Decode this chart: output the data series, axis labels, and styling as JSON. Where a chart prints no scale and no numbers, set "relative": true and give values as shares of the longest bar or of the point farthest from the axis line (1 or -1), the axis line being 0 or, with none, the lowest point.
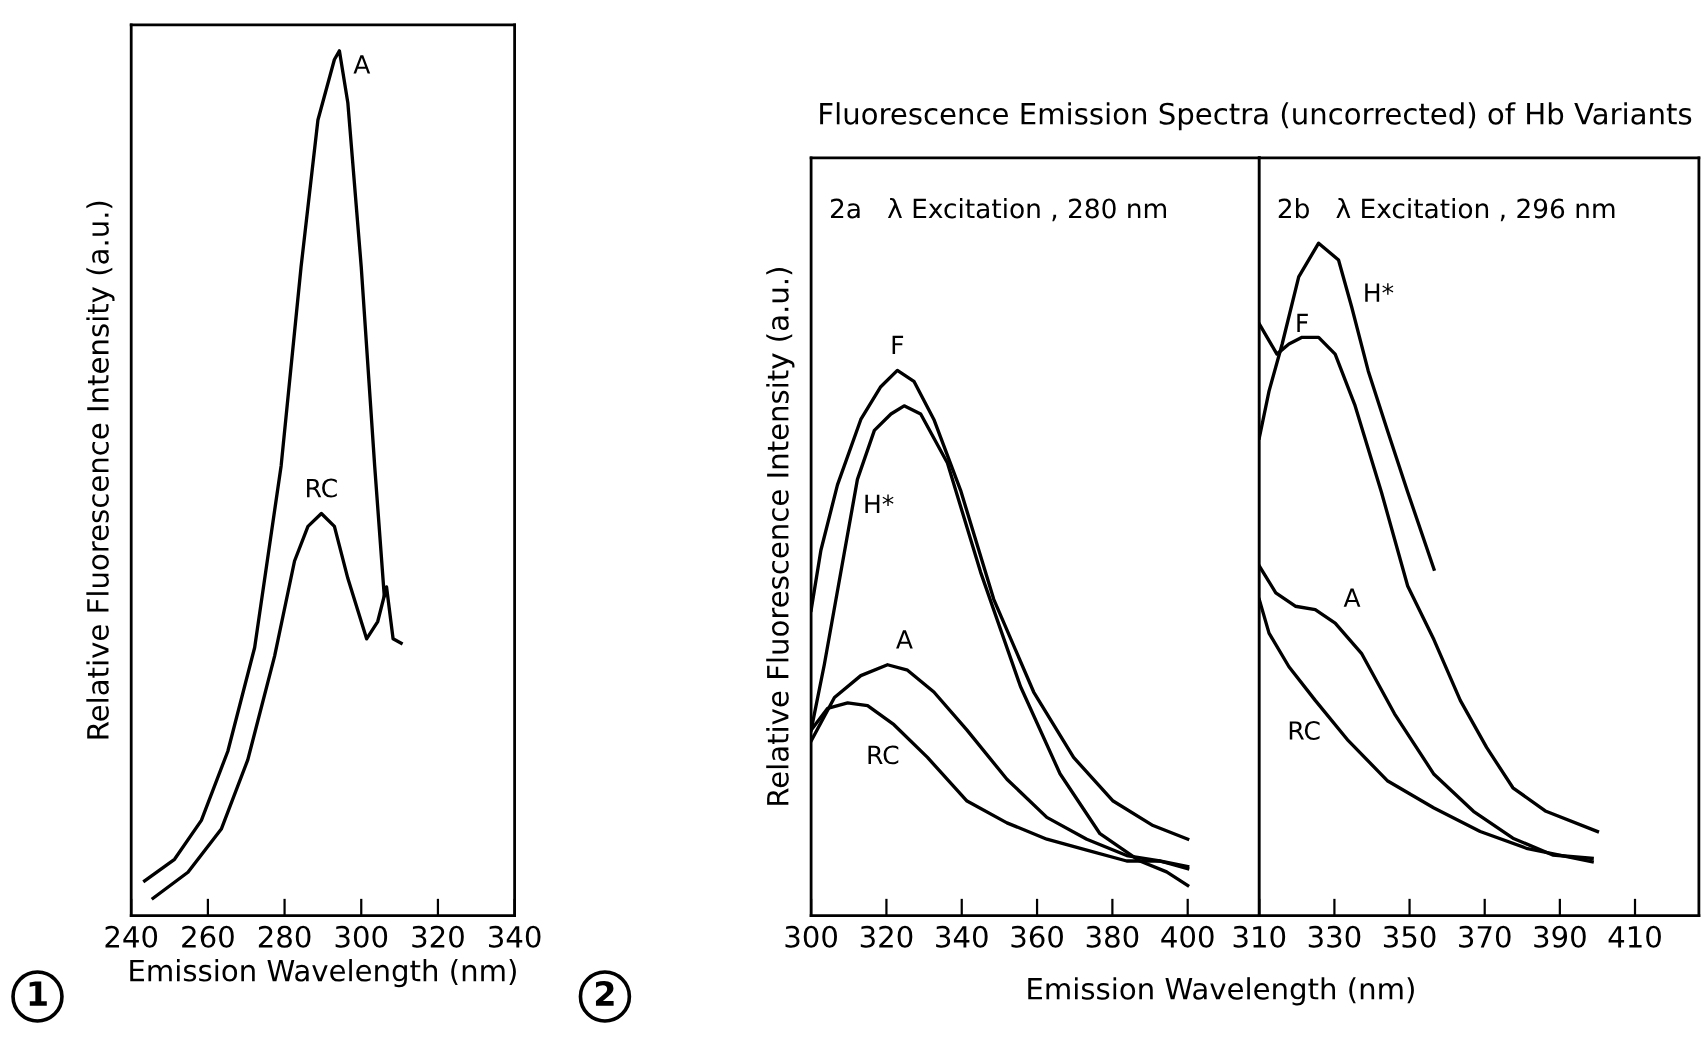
{
  "chart_data": [
    {
      "type": "line",
      "relative": true,
      "xlabel": "Emission Wavelength (nm)",
      "ylabel": "Relative Fluorescence Intensity (a.u.)",
      "xlim": [
        240,
        340
      ],
      "xticks": [
        240,
        260,
        280,
        300,
        320,
        340
      ],
      "grid": false,
      "series": [
        {
          "name": "A",
          "color": "#000000",
          "x": [
            243.5,
            251.3,
            258.3,
            265.2,
            272.2,
            279.1,
            284.3,
            288.7,
            293,
            294.3,
            296.5,
            300,
            303.5,
            306
          ],
          "values": [
            0.04,
            0.065,
            0.11,
            0.19,
            0.31,
            0.52,
            0.75,
            0.92,
            0.99,
            1.0,
            0.94,
            0.75,
            0.52,
            0.37
          ]
        },
        {
          "name": "RC",
          "color": "#000000",
          "x": [
            245.7,
            254.8,
            263.5,
            270.4,
            277.4,
            282.6,
            286.1,
            289.6,
            293,
            296.5,
            301.4,
            304.3,
            306.6,
            308.3,
            310.4
          ],
          "values": [
            0.02,
            0.05,
            0.1,
            0.18,
            0.3,
            0.41,
            0.45,
            0.465,
            0.45,
            0.39,
            0.32,
            0.34,
            0.38,
            0.32,
            0.315
          ]
        }
      ],
      "annotations": [
        "1"
      ]
    },
    {
      "type": "line",
      "relative": true,
      "title": "Fluorescence Emission Spectra (uncorrected) of Hb Variants",
      "xlabel": "Emission Wavelength (nm)",
      "ylabel": "Relative Fluorescence Intensity (a.u.)",
      "xlim": [
        300,
        419
      ],
      "xticks": [
        300,
        320,
        340,
        360,
        380,
        400
      ],
      "grid": false,
      "series": [
        {
          "name": "F",
          "color": "#000000",
          "x": [
            300,
            302.6,
            307,
            313.2,
            318.5,
            322.9,
            327.3,
            332.6,
            339.7,
            348.5,
            359.1,
            369.7,
            380.2,
            390.8,
            400
          ],
          "values": [
            0.56,
            0.67,
            0.79,
            0.91,
            0.97,
            1.0,
            0.98,
            0.91,
            0.78,
            0.58,
            0.41,
            0.29,
            0.21,
            0.165,
            0.14
          ]
        },
        {
          "name": "H*",
          "color": "#000000",
          "x": [
            300,
            303.5,
            307.9,
            312.3,
            316.8,
            321.2,
            324.7,
            329.1,
            336.2,
            345,
            355.6,
            366.1,
            376.7,
            387.3,
            394.4,
            400
          ],
          "values": [
            0.34,
            0.46,
            0.63,
            0.8,
            0.89,
            0.92,
            0.935,
            0.92,
            0.83,
            0.63,
            0.42,
            0.26,
            0.15,
            0.1,
            0.08,
            0.055
          ]
        },
        {
          "name": "A",
          "color": "#000000",
          "x": [
            300,
            306.2,
            313.2,
            320.3,
            325.6,
            332.6,
            341.4,
            352,
            362.6,
            373.2,
            383.8,
            392.6,
            400
          ],
          "values": [
            0.32,
            0.4,
            0.44,
            0.46,
            0.45,
            0.41,
            0.34,
            0.25,
            0.18,
            0.14,
            0.11,
            0.1,
            0.086
          ]
        },
        {
          "name": "RC",
          "color": "#000000",
          "x": [
            300,
            304.4,
            309.7,
            315,
            322,
            330.9,
            341.4,
            352,
            362.6,
            373.2,
            383.8,
            392.6,
            400
          ],
          "values": [
            0.34,
            0.38,
            0.39,
            0.385,
            0.35,
            0.29,
            0.21,
            0.17,
            0.14,
            0.12,
            0.1,
            0.1,
            0.09
          ]
        }
      ],
      "annotations": [
        "2a   λ Excitation , 280 nm",
        "2"
      ]
    },
    {
      "type": "line",
      "relative": true,
      "xlim": [
        310,
        427
      ],
      "xticks": [
        310,
        330,
        350,
        370,
        390,
        410
      ],
      "grid": false,
      "series": [
        {
          "name": "H*",
          "color": "#000000",
          "x": [
            310,
            312.6,
            316.1,
            320.5,
            325.8,
            331.1,
            334.6,
            339,
            344.2,
            349.5,
            356.5
          ],
          "values": [
            0.71,
            0.78,
            0.85,
            0.95,
            1.0,
            0.975,
            0.905,
            0.81,
            0.72,
            0.63,
            0.515
          ]
        },
        {
          "name": "F",
          "color": "#000000",
          "x": [
            310,
            312.6,
            314.7,
            317.9,
            321.4,
            325.8,
            330.2,
            335.4,
            342.5,
            349.5,
            356.5,
            363.5,
            370.5,
            377.5,
            386.3,
            400
          ],
          "values": [
            0.88,
            0.855,
            0.835,
            0.85,
            0.86,
            0.86,
            0.835,
            0.76,
            0.63,
            0.49,
            0.41,
            0.32,
            0.25,
            0.19,
            0.155,
            0.125
          ]
        },
        {
          "name": "A",
          "color": "#000000",
          "x": [
            310,
            314.4,
            319.6,
            324.9,
            330.2,
            337.2,
            346,
            356.5,
            367,
            377.5,
            388.1,
            398.6
          ],
          "values": [
            0.52,
            0.48,
            0.46,
            0.455,
            0.435,
            0.39,
            0.3,
            0.21,
            0.155,
            0.115,
            0.09,
            0.085
          ]
        },
        {
          "name": "RC",
          "color": "#000000",
          "x": [
            310,
            312.6,
            317.9,
            324.9,
            333.7,
            344.2,
            356.5,
            368.8,
            381.1,
            398.6
          ],
          "values": [
            0.47,
            0.42,
            0.37,
            0.32,
            0.26,
            0.2,
            0.16,
            0.125,
            0.1,
            0.08
          ]
        }
      ],
      "annotations": [
        "2b   λ Excitation , 296 nm"
      ]
    }
  ]
}
